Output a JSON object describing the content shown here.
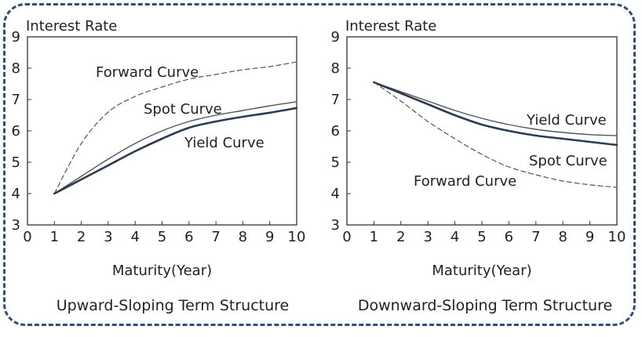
{
  "chart_data": [
    {
      "type": "line",
      "title": "",
      "caption": "Upward-Sloping Term Structure",
      "ylabel": "Interest Rate",
      "xlabel": "Maturity(Year)",
      "xlim": [
        0,
        10
      ],
      "ylim": [
        3,
        9
      ],
      "xticks": [
        "0",
        "1",
        "2",
        "3",
        "4",
        "5",
        "6",
        "7",
        "8",
        "9",
        "10"
      ],
      "yticks": [
        "3",
        "4",
        "5",
        "6",
        "7",
        "8",
        "9"
      ],
      "grid": false,
      "series": [
        {
          "name": "Forward Curve",
          "style": "dashed",
          "color": "#555555",
          "x": [
            1,
            2,
            3,
            4,
            5,
            6,
            7,
            8,
            9,
            10
          ],
          "y": [
            4.0,
            5.6,
            6.6,
            7.1,
            7.4,
            7.65,
            7.8,
            7.95,
            8.05,
            8.2
          ]
        },
        {
          "name": "Spot Curve",
          "style": "solid-thin",
          "color": "#555555",
          "x": [
            1,
            2,
            3,
            4,
            5,
            6,
            7,
            8,
            9,
            10
          ],
          "y": [
            4.0,
            4.55,
            5.1,
            5.6,
            6.0,
            6.3,
            6.5,
            6.65,
            6.8,
            6.93
          ]
        },
        {
          "name": "Yield Curve",
          "style": "solid-thick",
          "color": "#2b3b52",
          "x": [
            1,
            2,
            3,
            4,
            5,
            6,
            7,
            8,
            9,
            10
          ],
          "y": [
            4.0,
            4.45,
            4.9,
            5.35,
            5.75,
            6.1,
            6.3,
            6.45,
            6.58,
            6.73
          ]
        }
      ]
    },
    {
      "type": "line",
      "title": "",
      "caption": "Downward-Sloping Term Structure",
      "ylabel": "Interest Rate",
      "xlabel": "Maturity(Year)",
      "xlim": [
        0,
        10
      ],
      "ylim": [
        3,
        9
      ],
      "xticks": [
        "0",
        "1",
        "2",
        "3",
        "4",
        "5",
        "6",
        "7",
        "8",
        "9",
        "10"
      ],
      "yticks": [
        "3",
        "4",
        "5",
        "6",
        "7",
        "8",
        "9"
      ],
      "grid": false,
      "series": [
        {
          "name": "Yield Curve",
          "style": "solid-thin",
          "color": "#555555",
          "x": [
            1,
            2,
            3,
            4,
            5,
            6,
            7,
            8,
            9,
            10
          ],
          "y": [
            7.55,
            7.25,
            6.95,
            6.65,
            6.4,
            6.2,
            6.05,
            5.95,
            5.88,
            5.85
          ]
        },
        {
          "name": "Spot Curve",
          "style": "solid-thick",
          "color": "#2b3b52",
          "x": [
            1,
            2,
            3,
            4,
            5,
            6,
            7,
            8,
            9,
            10
          ],
          "y": [
            7.55,
            7.2,
            6.85,
            6.5,
            6.2,
            6.0,
            5.85,
            5.75,
            5.65,
            5.55
          ]
        },
        {
          "name": "Forward Curve",
          "style": "dashed",
          "color": "#555555",
          "x": [
            1,
            2,
            3,
            4,
            5,
            6,
            7,
            8,
            9,
            10
          ],
          "y": [
            7.55,
            6.95,
            6.3,
            5.75,
            5.25,
            4.85,
            4.6,
            4.4,
            4.28,
            4.2
          ]
        }
      ]
    }
  ]
}
